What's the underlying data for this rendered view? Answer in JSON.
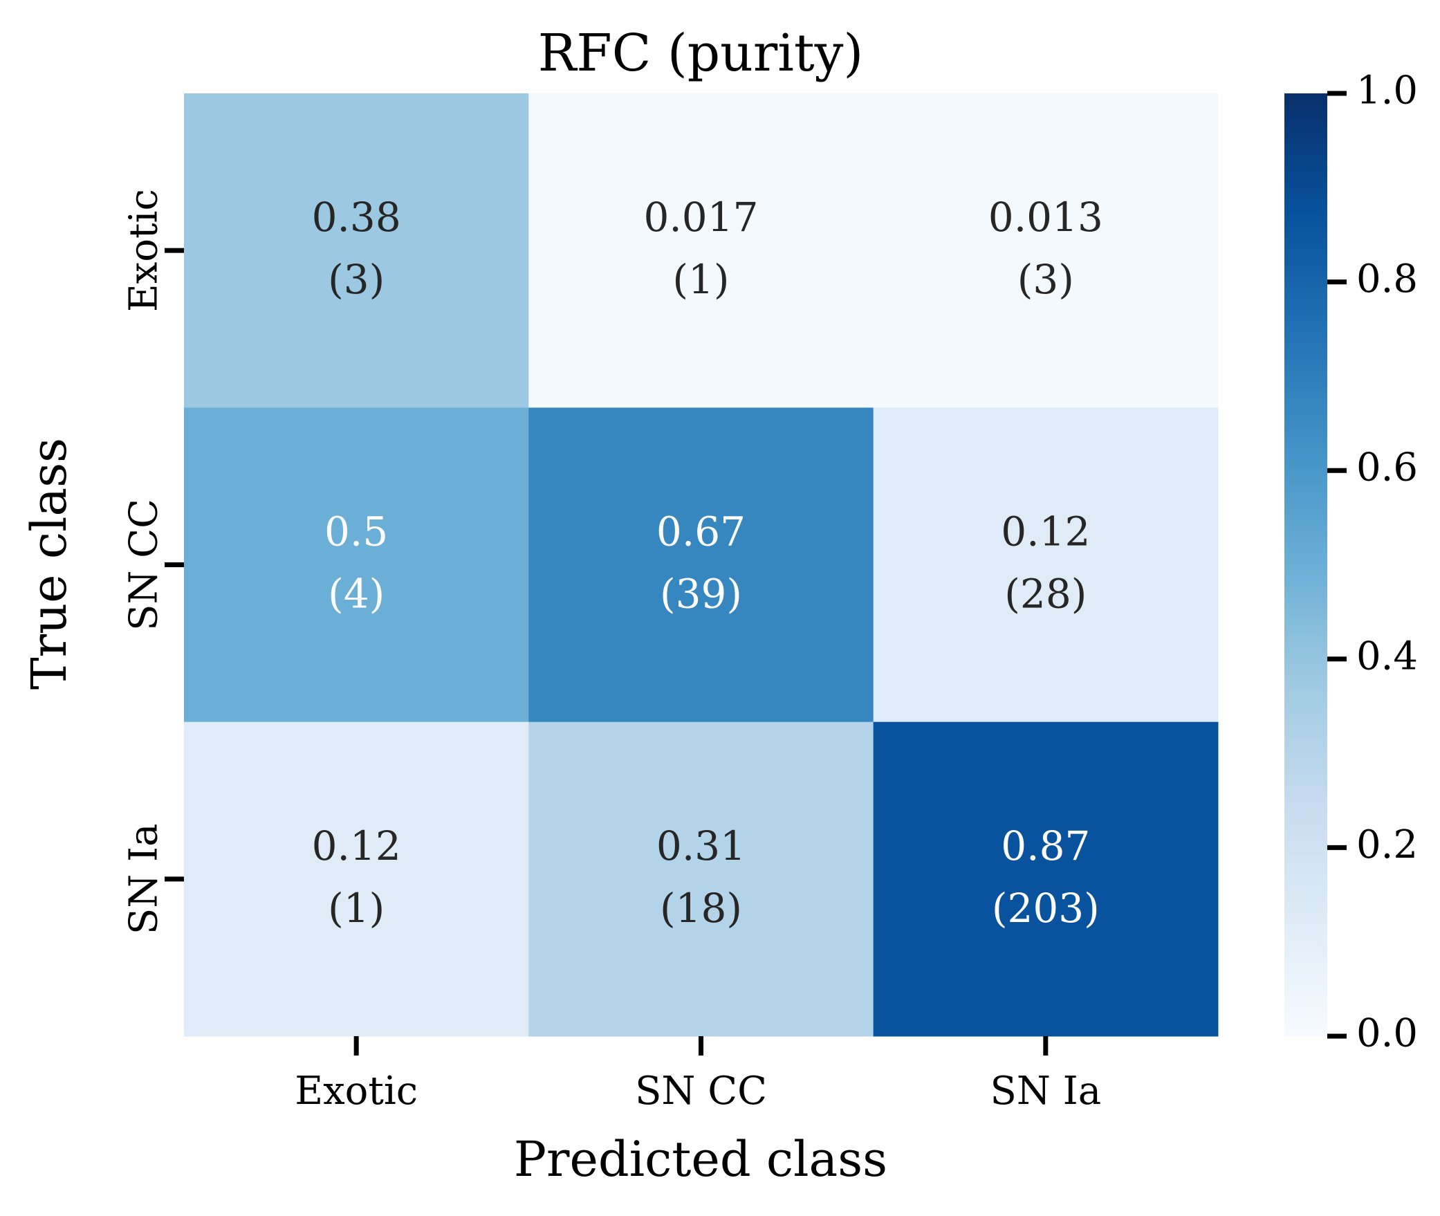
{
  "chart_data": {
    "type": "heatmap",
    "title": "RFC (purity)",
    "xlabel": "Predicted class",
    "ylabel": "True class",
    "x_categories": [
      "Exotic",
      "SN CC",
      "SN Ia"
    ],
    "y_categories": [
      "Exotic",
      "SN CC",
      "SN Ia"
    ],
    "values": [
      [
        0.38,
        0.017,
        0.013
      ],
      [
        0.5,
        0.67,
        0.12
      ],
      [
        0.12,
        0.31,
        0.87
      ]
    ],
    "value_labels": [
      [
        "0.38",
        "0.017",
        "0.013"
      ],
      [
        "0.5",
        "0.67",
        "0.12"
      ],
      [
        "0.12",
        "0.31",
        "0.87"
      ]
    ],
    "count_labels": [
      [
        "(3)",
        "(1)",
        "(3)"
      ],
      [
        "(4)",
        "(39)",
        "(28)"
      ],
      [
        "(1)",
        "(18)",
        "(203)"
      ]
    ],
    "colorscale": "Blues",
    "colorbar": {
      "range": [
        0.0,
        1.0
      ],
      "tick_values": [
        0.0,
        0.2,
        0.4,
        0.6,
        0.8,
        1.0
      ],
      "tick_labels": [
        "0.0",
        "0.2",
        "0.4",
        "0.6",
        "0.8",
        "1.0"
      ]
    },
    "grid": false
  }
}
